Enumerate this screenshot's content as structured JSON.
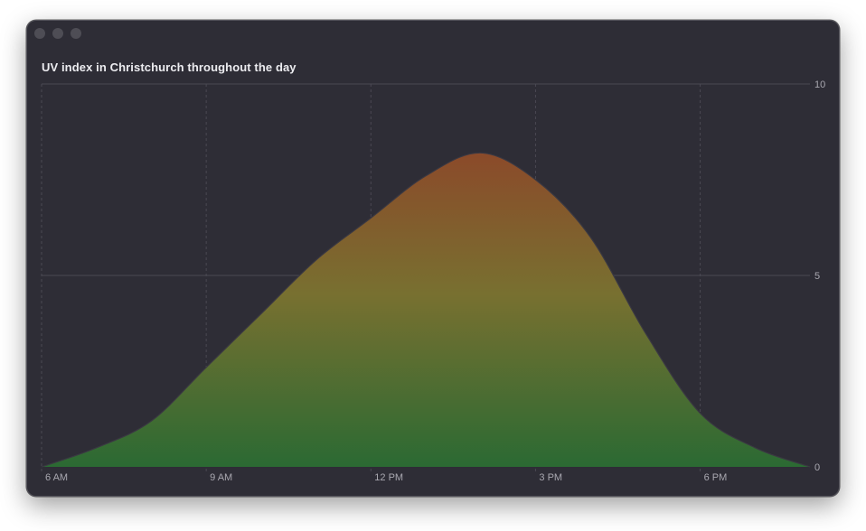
{
  "window": {
    "controls": [
      "close",
      "minimize",
      "zoom"
    ]
  },
  "chart_data": {
    "type": "area",
    "title": "UV index in Christchurch throughout the day",
    "xlabel": "",
    "ylabel": "",
    "x_ticks": [
      {
        "hour": 6,
        "label": "6 AM"
      },
      {
        "hour": 9,
        "label": "9 AM"
      },
      {
        "hour": 12,
        "label": "12 PM"
      },
      {
        "hour": 15,
        "label": "3 PM"
      },
      {
        "hour": 18,
        "label": "6 PM"
      }
    ],
    "y_ticks": [
      {
        "value": 0,
        "label": "0"
      },
      {
        "value": 5,
        "label": "5"
      },
      {
        "value": 10,
        "label": "10"
      }
    ],
    "xlim": [
      6,
      20
    ],
    "ylim": [
      0,
      10
    ],
    "y_axis_position": "right",
    "grid": true,
    "legend": "none",
    "series": [
      {
        "x": [
          6,
          7,
          8,
          9,
          10,
          11,
          12,
          13,
          14,
          15,
          16,
          17,
          18,
          19,
          20
        ],
        "values": [
          0,
          0.5,
          1.2,
          2.6,
          4.0,
          5.4,
          6.5,
          7.6,
          8.2,
          7.5,
          6.0,
          3.5,
          1.4,
          0.5,
          0
        ]
      }
    ],
    "gradient_colors": {
      "top": "#8b4a2a",
      "middle": "#787030",
      "bottom": "#2b6a33"
    },
    "line_color": "#3a3842"
  }
}
